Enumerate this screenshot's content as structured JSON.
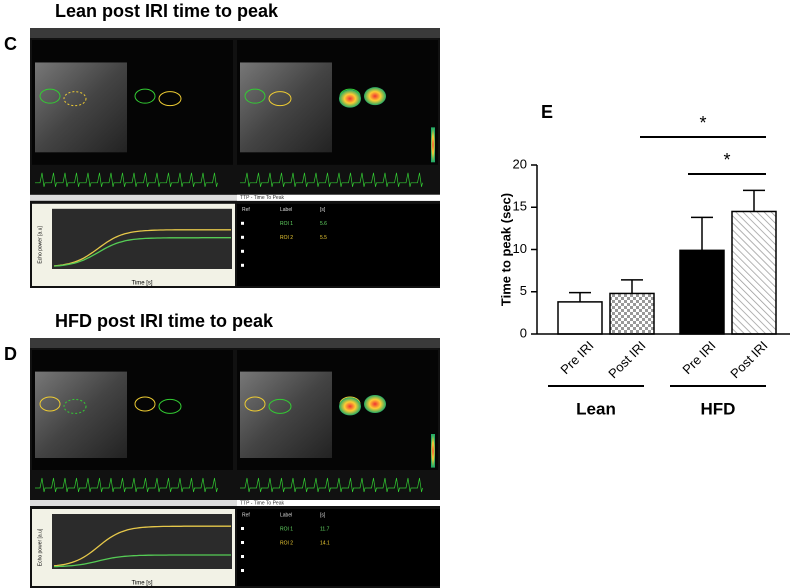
{
  "panels": [
    {
      "letter": "C",
      "title": "Lean post IRI time to peak",
      "tab": "TTP - Time To Peak",
      "xlabel": "Time [s]",
      "ylabel": "Echo power [a.u]",
      "table": {
        "header": [
          "Ref",
          "Label",
          "[s]"
        ],
        "rows": [
          [
            "ROI 1",
            "5.6"
          ],
          [
            "ROI 2",
            "5.5"
          ]
        ]
      }
    },
    {
      "letter": "D",
      "title": "HFD post IRI time to peak",
      "tab": "TTP - Time To Peak",
      "xlabel": "Time [s]",
      "ylabel": "Echo power [a.u]",
      "table": {
        "header": [
          "Ref",
          "Label",
          "[s]"
        ],
        "rows": [
          [
            "ROI 1",
            "11.7"
          ],
          [
            "ROI 2",
            "14.1"
          ]
        ]
      }
    }
  ],
  "chart_data": {
    "type": "bar",
    "label": "E",
    "y_label": "Time to peak (sec)",
    "categories": [
      "Pre IRI",
      "Post IRI",
      "Pre IRI",
      "Post IRI"
    ],
    "values": [
      3.8,
      4.8,
      9.9,
      14.5
    ],
    "errors": [
      1.1,
      1.6,
      3.9,
      2.5
    ],
    "fills": [
      "white",
      "checker",
      "black",
      "hatch"
    ],
    "groups": [
      {
        "name": "Lean"
      },
      {
        "name": "HFD"
      }
    ],
    "annotations": [
      {
        "text": "*",
        "between": [
          1,
          3
        ]
      },
      {
        "text": "*",
        "between": [
          2,
          3
        ]
      }
    ],
    "ylim": [
      0,
      20
    ],
    "yticks": [
      0,
      5,
      10,
      15,
      20
    ]
  }
}
